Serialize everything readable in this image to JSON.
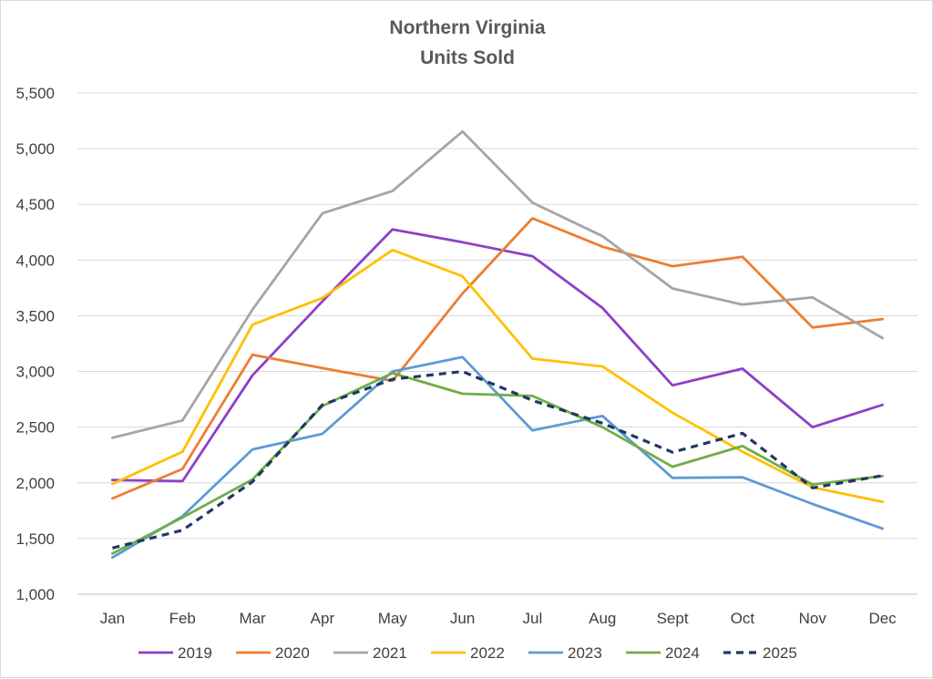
{
  "chart_data": {
    "type": "line",
    "title": "Northern Virginia",
    "subtitle": "Units Sold",
    "xlabel": "",
    "ylabel": "",
    "ylim": [
      1000,
      5500
    ],
    "yticks": [
      1000,
      1500,
      2000,
      2500,
      3000,
      3500,
      4000,
      4500,
      5000,
      5500
    ],
    "ytick_labels": [
      "1,000",
      "1,500",
      "2,000",
      "2,500",
      "3,000",
      "3,500",
      "4,000",
      "4,500",
      "5,000",
      "5,500"
    ],
    "grid": true,
    "legend": "bottom",
    "categories": [
      "Jan",
      "Feb",
      "Mar",
      "Apr",
      "May",
      "Jun",
      "Jul",
      "Aug",
      "Sept",
      "Oct",
      "Nov",
      "Dec"
    ],
    "series": [
      {
        "name": "2019",
        "color": "#8e3fc7",
        "dashed": false,
        "values": [
          2025,
          2015,
          2965,
          3630,
          4275,
          4160,
          4035,
          3570,
          2875,
          3025,
          2500,
          2700
        ]
      },
      {
        "name": "2020",
        "color": "#ed7d31",
        "dashed": false,
        "values": [
          1860,
          2125,
          3150,
          3030,
          2915,
          3700,
          4375,
          4120,
          3945,
          4030,
          3395,
          3470
        ]
      },
      {
        "name": "2021",
        "color": "#a5a5a5",
        "dashed": false,
        "values": [
          2405,
          2560,
          3555,
          4420,
          4620,
          5155,
          4515,
          4215,
          3745,
          3600,
          3665,
          3300
        ]
      },
      {
        "name": "2022",
        "color": "#ffc000",
        "dashed": false,
        "values": [
          1990,
          2280,
          3420,
          3660,
          4090,
          3855,
          3115,
          3045,
          2630,
          2280,
          1960,
          1830
        ]
      },
      {
        "name": "2023",
        "color": "#5b9bd5",
        "dashed": false,
        "values": [
          1330,
          1700,
          2300,
          2440,
          3000,
          3130,
          2470,
          2600,
          2045,
          2050,
          1810,
          1590
        ]
      },
      {
        "name": "2024",
        "color": "#70ad47",
        "dashed": false,
        "values": [
          1365,
          1690,
          2030,
          2690,
          2985,
          2800,
          2780,
          2500,
          2145,
          2330,
          1985,
          2060
        ]
      },
      {
        "name": "2025",
        "color": "#203864",
        "dashed": true,
        "values": [
          1415,
          1575,
          2010,
          2700,
          2930,
          3000,
          2740,
          2535,
          2275,
          2445,
          1955,
          2065
        ]
      }
    ]
  }
}
